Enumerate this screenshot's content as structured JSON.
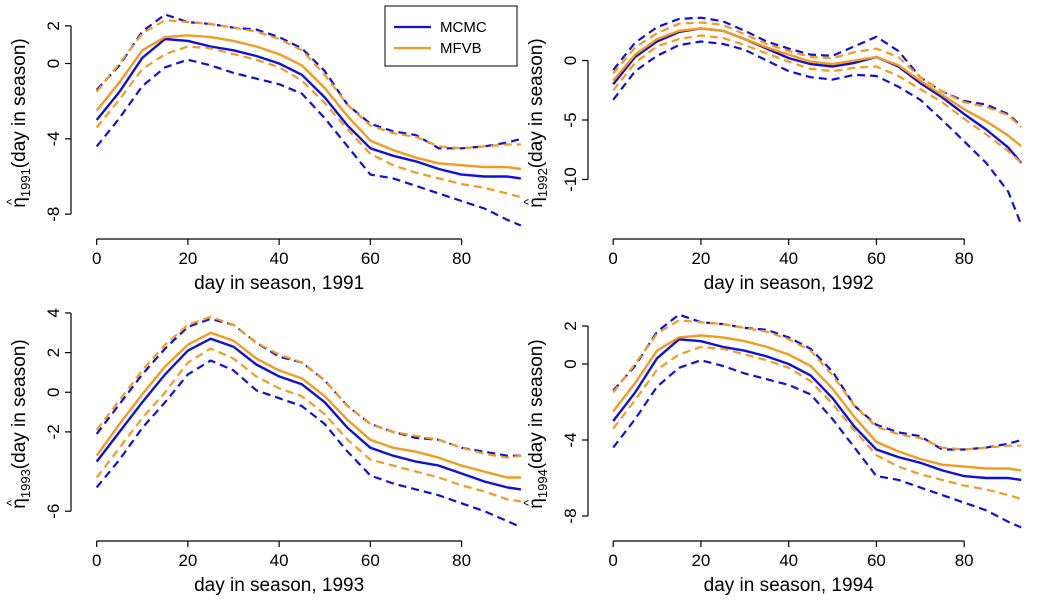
{
  "colors": {
    "mcmc": "#1010dd",
    "mfvb": "#f59a1e"
  },
  "legend": {
    "placement": "top-right of first panel",
    "entries": [
      "MCMC",
      "MFVB"
    ]
  },
  "chart_data": [
    {
      "type": "line",
      "xlabel": "day in season, 1991",
      "ylabel_main": "(day in season)",
      "ylabel_hat": "^",
      "ylabel_eta": "η",
      "ylabel_sub": "1991",
      "xlim": [
        -3,
        95
      ],
      "ylim": [
        -9,
        3
      ],
      "xticks": [
        0,
        20,
        40,
        60,
        80
      ],
      "xtick_labels": [
        "0",
        "20",
        "40",
        "60",
        "80"
      ],
      "yticks": [
        2,
        0,
        -4,
        -8
      ],
      "ytick_labels": [
        "2",
        "0",
        "-4",
        "-8"
      ],
      "grid": false,
      "x": [
        0,
        5,
        10,
        15,
        20,
        25,
        30,
        35,
        40,
        45,
        50,
        55,
        60,
        65,
        70,
        75,
        80,
        85,
        90,
        93
      ],
      "series": [
        {
          "name": "MCMC",
          "style": "solid",
          "color_key": "mcmc",
          "values": [
            -3.0,
            -1.5,
            0.3,
            1.3,
            1.2,
            0.9,
            0.7,
            0.4,
            0.0,
            -0.6,
            -1.8,
            -3.3,
            -4.5,
            -4.9,
            -5.2,
            -5.6,
            -5.9,
            -6.0,
            -6.0,
            -6.1
          ]
        },
        {
          "name": "MCMC",
          "style": "dashed",
          "color_key": "mcmc",
          "values": [
            -1.4,
            -0.1,
            1.7,
            2.6,
            2.2,
            2.1,
            1.9,
            1.8,
            1.4,
            0.8,
            -0.4,
            -2.2,
            -3.2,
            -3.6,
            -3.8,
            -4.5,
            -4.5,
            -4.4,
            -4.2,
            -4.0
          ]
        },
        {
          "name": "MCMC",
          "style": "dashed",
          "color_key": "mcmc",
          "values": [
            -4.4,
            -2.9,
            -1.2,
            -0.2,
            0.2,
            -0.1,
            -0.5,
            -0.8,
            -1.1,
            -1.6,
            -2.9,
            -4.4,
            -5.9,
            -6.1,
            -6.5,
            -6.9,
            -7.3,
            -7.7,
            -8.3,
            -8.6
          ]
        },
        {
          "name": "MFVB",
          "style": "solid",
          "color_key": "mfvb",
          "values": [
            -2.5,
            -1.0,
            0.7,
            1.4,
            1.5,
            1.4,
            1.2,
            0.9,
            0.5,
            -0.1,
            -1.3,
            -2.8,
            -4.1,
            -4.6,
            -5.0,
            -5.3,
            -5.4,
            -5.5,
            -5.5,
            -5.6
          ]
        },
        {
          "name": "MFVB",
          "style": "dashed",
          "color_key": "mfvb",
          "values": [
            -1.5,
            0.0,
            1.6,
            2.3,
            2.2,
            2.1,
            1.9,
            1.7,
            1.3,
            0.7,
            -0.6,
            -2.2,
            -3.3,
            -3.7,
            -3.9,
            -4.4,
            -4.5,
            -4.4,
            -4.3,
            -4.3
          ]
        },
        {
          "name": "MFVB",
          "style": "dashed",
          "color_key": "mfvb",
          "values": [
            -3.4,
            -1.9,
            -0.3,
            0.5,
            0.9,
            0.8,
            0.5,
            0.2,
            -0.2,
            -0.9,
            -2.1,
            -3.5,
            -4.8,
            -5.4,
            -5.8,
            -6.1,
            -6.4,
            -6.6,
            -6.9,
            -7.1
          ]
        }
      ]
    },
    {
      "type": "line",
      "xlabel": "day in season, 1992",
      "ylabel_main": "(day in season)",
      "ylabel_hat": "^",
      "ylabel_eta": "η",
      "ylabel_sub": "1992",
      "xlim": [
        -3,
        95
      ],
      "ylim": [
        -14.5,
        4.5
      ],
      "xticks": [
        0,
        20,
        40,
        60,
        80
      ],
      "xtick_labels": [
        "0",
        "20",
        "40",
        "60",
        "80"
      ],
      "yticks": [
        0,
        -5,
        -10
      ],
      "ytick_labels": [
        "0",
        "-5",
        "-10"
      ],
      "grid": false,
      "x": [
        0,
        5,
        10,
        15,
        20,
        25,
        30,
        35,
        40,
        45,
        50,
        55,
        60,
        65,
        70,
        75,
        80,
        85,
        90,
        93
      ],
      "series": [
        {
          "name": "MCMC",
          "style": "solid",
          "color_key": "mcmc",
          "values": [
            -2.0,
            0.3,
            1.6,
            2.4,
            2.7,
            2.5,
            1.8,
            1.0,
            0.2,
            -0.3,
            -0.5,
            -0.2,
            0.3,
            -0.5,
            -1.9,
            -3.1,
            -4.5,
            -5.8,
            -7.3,
            -8.6
          ]
        },
        {
          "name": "MCMC",
          "style": "dashed",
          "color_key": "mcmc",
          "values": [
            -0.8,
            1.5,
            2.8,
            3.5,
            3.6,
            3.3,
            2.5,
            1.6,
            1.0,
            0.5,
            0.4,
            1.2,
            2.0,
            0.8,
            -1.4,
            -2.6,
            -3.4,
            -3.7,
            -4.5,
            -5.5
          ]
        },
        {
          "name": "MCMC",
          "style": "dashed",
          "color_key": "mcmc",
          "values": [
            -3.3,
            -0.9,
            0.4,
            1.3,
            1.6,
            1.4,
            0.9,
            0.0,
            -0.9,
            -1.4,
            -1.6,
            -1.2,
            -1.3,
            -2.2,
            -3.3,
            -5.0,
            -6.8,
            -8.6,
            -11.0,
            -13.8
          ]
        },
        {
          "name": "MFVB",
          "style": "solid",
          "color_key": "mfvb",
          "values": [
            -1.7,
            0.5,
            1.8,
            2.5,
            2.7,
            2.5,
            1.8,
            1.1,
            0.5,
            -0.1,
            -0.3,
            0.0,
            0.3,
            -0.4,
            -1.7,
            -2.9,
            -4.1,
            -5.1,
            -6.3,
            -7.2
          ]
        },
        {
          "name": "MFVB",
          "style": "dashed",
          "color_key": "mfvb",
          "values": [
            -1.1,
            1.1,
            2.3,
            3.1,
            3.2,
            3.0,
            2.2,
            1.4,
            0.8,
            0.3,
            0.2,
            0.7,
            1.0,
            0.3,
            -1.4,
            -2.6,
            -3.5,
            -3.9,
            -4.6,
            -5.6
          ]
        },
        {
          "name": "MFVB",
          "style": "dashed",
          "color_key": "mfvb",
          "values": [
            -2.5,
            -0.2,
            1.2,
            1.8,
            2.1,
            1.9,
            1.3,
            0.6,
            -0.1,
            -0.7,
            -0.9,
            -0.6,
            -0.5,
            -1.3,
            -2.4,
            -3.5,
            -4.9,
            -6.2,
            -7.6,
            -8.6
          ]
        }
      ]
    },
    {
      "type": "line",
      "xlabel": "day in season, 1993",
      "ylabel_main": "(day in season)",
      "ylabel_hat": "^",
      "ylabel_eta": "η",
      "ylabel_sub": "1993",
      "xlim": [
        -3,
        95
      ],
      "ylim": [
        -7.2,
        4.3
      ],
      "xticks": [
        0,
        20,
        40,
        60,
        80
      ],
      "xtick_labels": [
        "0",
        "20",
        "40",
        "60",
        "80"
      ],
      "yticks": [
        4,
        2,
        0,
        -2,
        -6
      ],
      "ytick_labels": [
        "4",
        "2",
        "0",
        "-2",
        "-6"
      ],
      "grid": false,
      "x": [
        0,
        5,
        10,
        15,
        20,
        25,
        30,
        35,
        40,
        45,
        50,
        55,
        60,
        65,
        70,
        75,
        80,
        85,
        90,
        93
      ],
      "series": [
        {
          "name": "MCMC",
          "style": "solid",
          "color_key": "mcmc",
          "values": [
            -3.5,
            -2.0,
            -0.5,
            0.9,
            2.1,
            2.7,
            2.3,
            1.4,
            0.8,
            0.4,
            -0.5,
            -1.8,
            -2.8,
            -3.2,
            -3.5,
            -3.7,
            -4.1,
            -4.5,
            -4.8,
            -4.9
          ]
        },
        {
          "name": "MCMC",
          "style": "dashed",
          "color_key": "mcmc",
          "values": [
            -2.1,
            -0.6,
            0.9,
            2.2,
            3.3,
            3.7,
            3.4,
            2.5,
            1.8,
            1.5,
            0.6,
            -0.7,
            -1.6,
            -2.0,
            -2.3,
            -2.4,
            -2.8,
            -3.0,
            -3.2,
            -3.2
          ]
        },
        {
          "name": "MCMC",
          "style": "dashed",
          "color_key": "mcmc",
          "values": [
            -4.8,
            -3.4,
            -1.8,
            -0.5,
            0.9,
            1.6,
            1.1,
            0.1,
            -0.3,
            -0.7,
            -1.6,
            -3.0,
            -4.2,
            -4.6,
            -4.9,
            -5.2,
            -5.6,
            -6.0,
            -6.5,
            -6.8
          ]
        },
        {
          "name": "MFVB",
          "style": "solid",
          "color_key": "mfvb",
          "values": [
            -3.2,
            -1.6,
            -0.1,
            1.3,
            2.4,
            3.0,
            2.6,
            1.7,
            1.1,
            0.7,
            -0.2,
            -1.4,
            -2.4,
            -2.8,
            -3.0,
            -3.3,
            -3.7,
            -4.0,
            -4.3,
            -4.3
          ]
        },
        {
          "name": "MFVB",
          "style": "dashed",
          "color_key": "mfvb",
          "values": [
            -1.9,
            -0.4,
            1.1,
            2.4,
            3.4,
            3.8,
            3.4,
            2.5,
            1.9,
            1.5,
            0.6,
            -0.7,
            -1.6,
            -2.0,
            -2.2,
            -2.4,
            -2.8,
            -3.1,
            -3.3,
            -3.2
          ]
        },
        {
          "name": "MFVB",
          "style": "dashed",
          "color_key": "mfvb",
          "values": [
            -4.3,
            -2.8,
            -1.3,
            0.0,
            1.5,
            2.2,
            1.7,
            0.8,
            0.2,
            -0.2,
            -1.1,
            -2.4,
            -3.4,
            -3.7,
            -4.0,
            -4.3,
            -4.7,
            -5.0,
            -5.4,
            -5.5
          ]
        }
      ]
    },
    {
      "type": "line",
      "xlabel": "day in season, 1994",
      "ylabel_main": "(day in season)",
      "ylabel_hat": "^",
      "ylabel_eta": "η",
      "ylabel_sub": "1994",
      "xlim": [
        -3,
        95
      ],
      "ylim": [
        -9,
        3
      ],
      "xticks": [
        0,
        20,
        40,
        60,
        80
      ],
      "xtick_labels": [
        "0",
        "20",
        "40",
        "60",
        "80"
      ],
      "yticks": [
        2,
        0,
        -4,
        -8
      ],
      "ytick_labels": [
        "2",
        "0",
        "-4",
        "-8"
      ],
      "grid": false,
      "x": [
        0,
        5,
        10,
        15,
        20,
        25,
        30,
        35,
        40,
        45,
        50,
        55,
        60,
        65,
        70,
        75,
        80,
        85,
        90,
        93
      ],
      "series": [
        {
          "name": "MCMC",
          "style": "solid",
          "color_key": "mcmc",
          "values": [
            -3.0,
            -1.5,
            0.3,
            1.3,
            1.2,
            0.9,
            0.7,
            0.4,
            0.0,
            -0.6,
            -1.8,
            -3.3,
            -4.5,
            -4.9,
            -5.2,
            -5.6,
            -5.9,
            -6.0,
            -6.0,
            -6.1
          ]
        },
        {
          "name": "MCMC",
          "style": "dashed",
          "color_key": "mcmc",
          "values": [
            -1.4,
            -0.1,
            1.7,
            2.6,
            2.2,
            2.1,
            1.9,
            1.8,
            1.4,
            0.8,
            -0.4,
            -2.2,
            -3.2,
            -3.6,
            -3.8,
            -4.5,
            -4.5,
            -4.4,
            -4.2,
            -4.0
          ]
        },
        {
          "name": "MCMC",
          "style": "dashed",
          "color_key": "mcmc",
          "values": [
            -4.4,
            -2.9,
            -1.2,
            -0.2,
            0.2,
            -0.1,
            -0.5,
            -0.8,
            -1.1,
            -1.6,
            -2.9,
            -4.4,
            -5.9,
            -6.1,
            -6.5,
            -6.9,
            -7.3,
            -7.7,
            -8.3,
            -8.6
          ]
        },
        {
          "name": "MFVB",
          "style": "solid",
          "color_key": "mfvb",
          "values": [
            -2.5,
            -1.0,
            0.7,
            1.4,
            1.5,
            1.4,
            1.2,
            0.9,
            0.5,
            -0.1,
            -1.3,
            -2.8,
            -4.1,
            -4.6,
            -5.0,
            -5.3,
            -5.4,
            -5.5,
            -5.5,
            -5.6
          ]
        },
        {
          "name": "MFVB",
          "style": "dashed",
          "color_key": "mfvb",
          "values": [
            -1.5,
            0.0,
            1.6,
            2.3,
            2.2,
            2.1,
            1.9,
            1.7,
            1.3,
            0.7,
            -0.6,
            -2.2,
            -3.3,
            -3.7,
            -3.9,
            -4.4,
            -4.5,
            -4.4,
            -4.3,
            -4.3
          ]
        },
        {
          "name": "MFVB",
          "style": "dashed",
          "color_key": "mfvb",
          "values": [
            -3.4,
            -1.9,
            -0.3,
            0.5,
            0.9,
            0.8,
            0.5,
            0.2,
            -0.2,
            -0.9,
            -2.1,
            -3.5,
            -4.8,
            -5.4,
            -5.8,
            -6.1,
            -6.4,
            -6.6,
            -6.9,
            -7.1
          ]
        }
      ]
    }
  ]
}
